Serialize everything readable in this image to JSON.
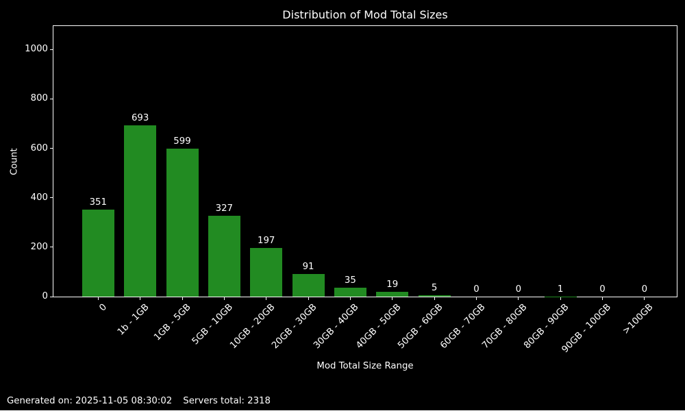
{
  "chart_data": {
    "type": "bar",
    "title": "Distribution of Mod Total Sizes",
    "xlabel": "Mod Total Size Range",
    "ylabel": "Count",
    "categories": [
      "0",
      "1b - 1GB",
      "1GB - 5GB",
      "5GB - 10GB",
      "10GB - 20GB",
      "20GB - 30GB",
      "30GB - 40GB",
      "40GB - 50GB",
      "50GB - 60GB",
      "60GB - 70GB",
      "70GB - 80GB",
      "80GB - 90GB",
      "90GB - 100GB",
      ">100GB"
    ],
    "values": [
      351,
      693,
      599,
      327,
      197,
      91,
      35,
      19,
      5,
      0,
      0,
      1,
      0,
      0
    ],
    "yticks": [
      0,
      200,
      400,
      600,
      800,
      1000
    ],
    "ylim": [
      0,
      1095
    ],
    "xtick_rotation_deg": 45,
    "grid": false,
    "legend": null,
    "bar_color": "#228B22",
    "background_color": "#000000",
    "text_color": "#ffffff",
    "spine_color": "#ffffff"
  },
  "footer": {
    "generated_label": "Generated on: 2025-11-05 08:30:02",
    "servers_label": "Servers total: 2318"
  }
}
